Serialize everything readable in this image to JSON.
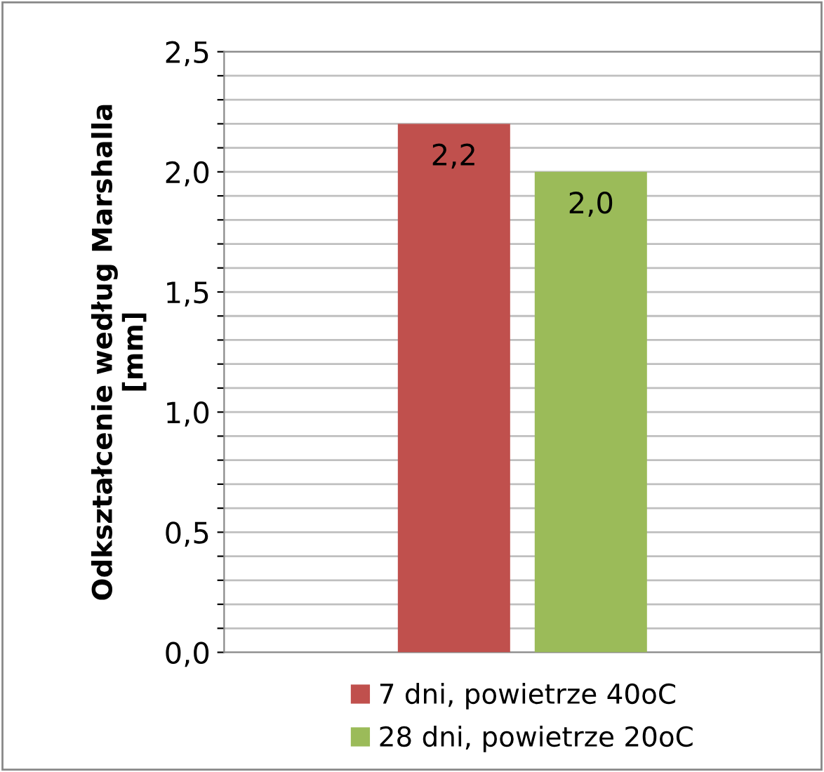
{
  "chart_data": {
    "type": "bar",
    "ylabel": "Odkształcenie według Marshalla\n[mm]",
    "categories": [
      null
    ],
    "series": [
      {
        "name": "7 dni, powietrze 40oC",
        "color": "#c0504d",
        "values": [
          2.2
        ],
        "value_labels": [
          "2,2"
        ]
      },
      {
        "name": "28 dni, powietrze 20oC",
        "color": "#9bbb59",
        "values": [
          2.0
        ],
        "value_labels": [
          "2,0"
        ]
      }
    ],
    "ylim": [
      0,
      2.5
    ],
    "yticks": [
      {
        "value": 0,
        "label": "0,0"
      },
      {
        "value": 0.1,
        "label": null
      },
      {
        "value": 0.2,
        "label": null
      },
      {
        "value": 0.3,
        "label": null
      },
      {
        "value": 0.4,
        "label": null
      },
      {
        "value": 0.5,
        "label": "0,5"
      },
      {
        "value": 0.6,
        "label": null
      },
      {
        "value": 0.7,
        "label": null
      },
      {
        "value": 0.8,
        "label": null
      },
      {
        "value": 0.9,
        "label": null
      },
      {
        "value": 1.0,
        "label": "1,0"
      },
      {
        "value": 1.1,
        "label": null
      },
      {
        "value": 1.2,
        "label": null
      },
      {
        "value": 1.3,
        "label": null
      },
      {
        "value": 1.4,
        "label": null
      },
      {
        "value": 1.5,
        "label": "1,5"
      },
      {
        "value": 1.6,
        "label": null
      },
      {
        "value": 1.7,
        "label": null
      },
      {
        "value": 1.8,
        "label": null
      },
      {
        "value": 1.9,
        "label": null
      },
      {
        "value": 2.0,
        "label": "2,0"
      },
      {
        "value": 2.1,
        "label": null
      },
      {
        "value": 2.2,
        "label": null
      },
      {
        "value": 2.3,
        "label": null
      },
      {
        "value": 2.4,
        "label": null
      },
      {
        "value": 2.5,
        "label": "2,5"
      }
    ],
    "grid": "y",
    "legend": "bottom"
  }
}
